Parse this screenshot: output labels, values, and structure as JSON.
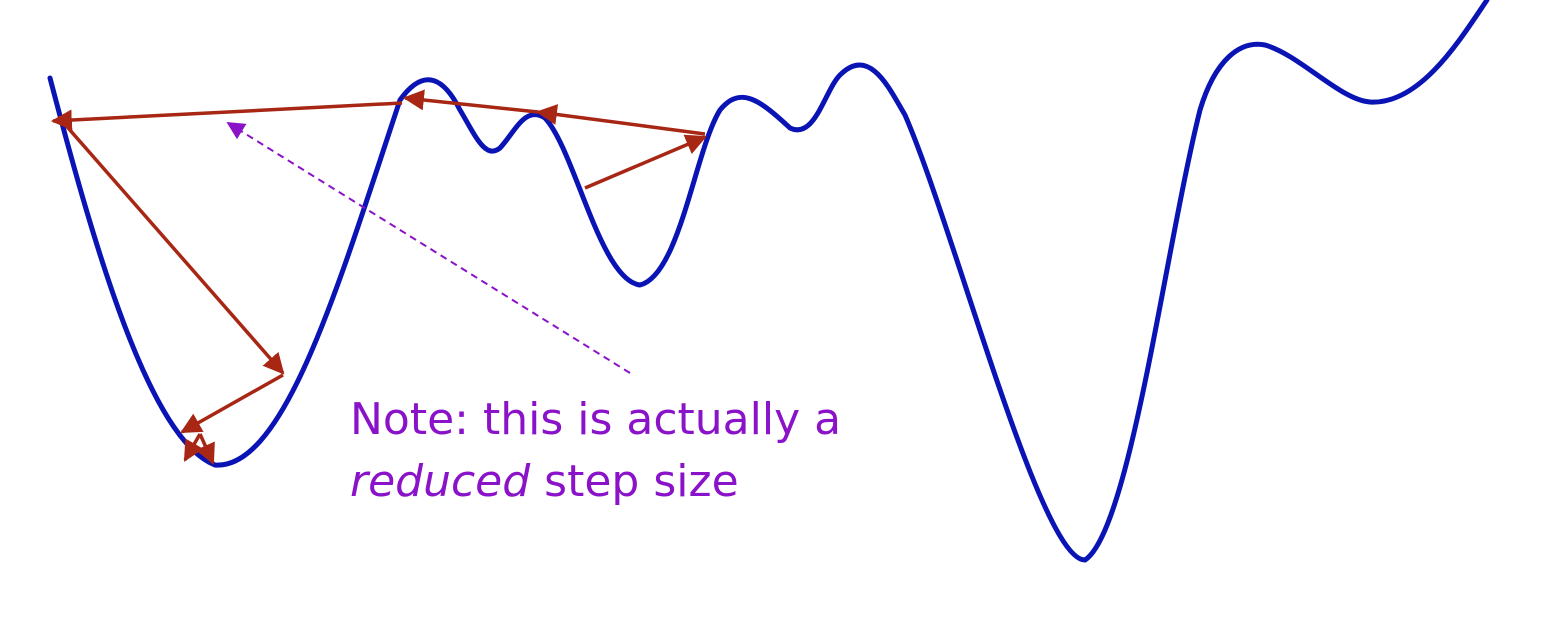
{
  "colors": {
    "curve": "#0a14b4",
    "steps": "#a82614",
    "note": "#8a12c8",
    "background": "#ffffff"
  },
  "note": {
    "line1": "Note: this is actually a",
    "line2_italic": "reduced",
    "line2_rest": " step size"
  }
}
